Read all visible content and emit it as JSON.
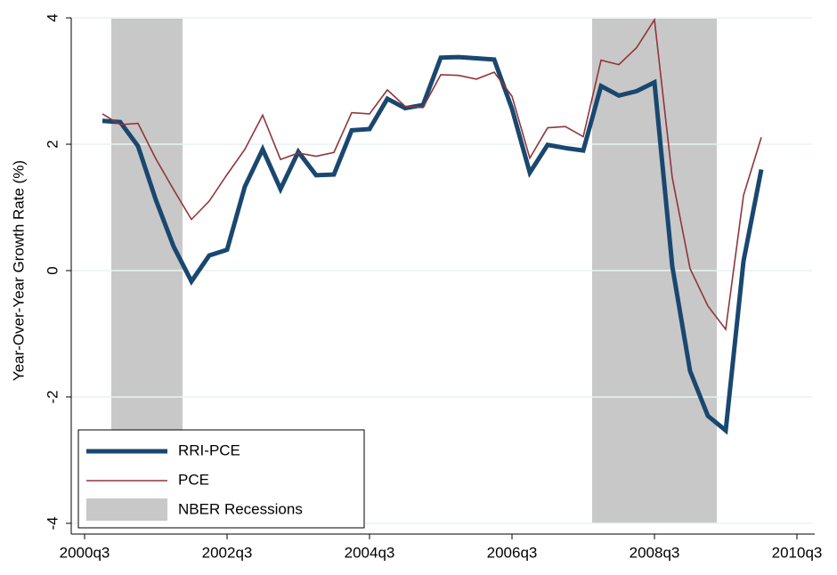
{
  "chart_data": {
    "type": "line",
    "y_label": "Year-Over-Year Growth Rate (%)",
    "x": [
      "2000q4",
      "2001q1",
      "2001q2",
      "2001q3",
      "2001q4",
      "2002q1",
      "2002q2",
      "2002q3",
      "2002q4",
      "2003q1",
      "2003q2",
      "2003q3",
      "2003q4",
      "2004q1",
      "2004q2",
      "2004q3",
      "2004q4",
      "2005q1",
      "2005q2",
      "2005q3",
      "2005q4",
      "2006q1",
      "2006q2",
      "2006q3",
      "2006q4",
      "2007q1",
      "2007q2",
      "2007q3",
      "2007q4",
      "2008q1",
      "2008q2",
      "2008q3",
      "2008q4",
      "2009q1",
      "2009q2",
      "2009q3",
      "2009q4",
      "2010q1"
    ],
    "series": [
      {
        "name": "RRI-PCE",
        "color": "#1a476f",
        "values": [
          2.37,
          2.35,
          1.97,
          1.12,
          0.38,
          -0.17,
          0.24,
          0.33,
          1.33,
          1.92,
          1.29,
          1.88,
          1.51,
          1.52,
          2.22,
          2.24,
          2.72,
          2.57,
          2.62,
          3.37,
          3.38,
          3.36,
          3.34,
          2.56,
          1.55,
          1.99,
          1.94,
          1.9,
          2.92,
          2.77,
          2.84,
          2.98,
          0.07,
          -1.59,
          -2.3,
          -2.53,
          0.15,
          1.6
        ]
      },
      {
        "name": "PCE",
        "color": "#90353b",
        "values": [
          2.48,
          2.31,
          2.33,
          1.77,
          1.28,
          0.81,
          1.1,
          1.52,
          1.92,
          2.46,
          1.76,
          1.86,
          1.81,
          1.87,
          2.5,
          2.48,
          2.86,
          2.6,
          2.58,
          3.1,
          3.09,
          3.03,
          3.14,
          2.76,
          1.78,
          2.26,
          2.28,
          2.12,
          3.33,
          3.26,
          3.53,
          3.97,
          1.47,
          0.03,
          -0.56,
          -0.93,
          1.19,
          2.11
        ]
      }
    ],
    "shading": {
      "name": "NBER Recessions",
      "color": "#c8c8c8",
      "periods": [
        [
          "2001q1",
          "2001q4"
        ],
        [
          "2007q4",
          "2009q2"
        ]
      ]
    },
    "xlim": [
      "2000q2",
      "2010q4"
    ],
    "xticks": [
      "2000q3",
      "2002q3",
      "2004q3",
      "2006q3",
      "2008q3",
      "2010q3"
    ],
    "ylim": [
      -4.17,
      4.17
    ],
    "yticks": [
      -4,
      -2,
      0,
      2,
      4
    ],
    "grid": true
  }
}
